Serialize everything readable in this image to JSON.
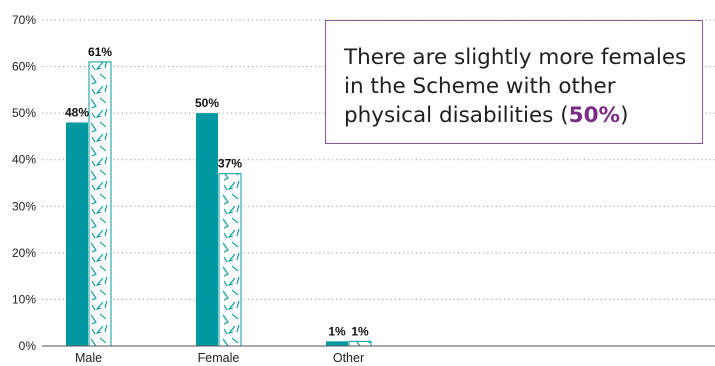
{
  "chart_data": {
    "type": "bar",
    "categories": [
      "Male",
      "Female",
      "Other"
    ],
    "series": [
      {
        "values": [
          48,
          50,
          1
        ],
        "labels": [
          "48%",
          "50%",
          "1%"
        ],
        "style": "solid",
        "color": "#0099a1"
      },
      {
        "values": [
          61,
          37,
          1
        ],
        "labels": [
          "61%",
          "37%",
          "1%"
        ],
        "style": "hatched",
        "color": "#0099a1"
      }
    ],
    "ylim": [
      0,
      70
    ],
    "yticks": [
      "0%",
      "10%",
      "20%",
      "30%",
      "40%",
      "50%",
      "60%",
      "70%"
    ],
    "grid": true,
    "grid_style": "dotted"
  },
  "callout": {
    "text_before": "There are slightly more females in the Scheme with other physical disabilities (",
    "highlight": "50%",
    "text_after": ")",
    "border_color": "#8a5a9c",
    "highlight_color": "#7b2d86"
  }
}
